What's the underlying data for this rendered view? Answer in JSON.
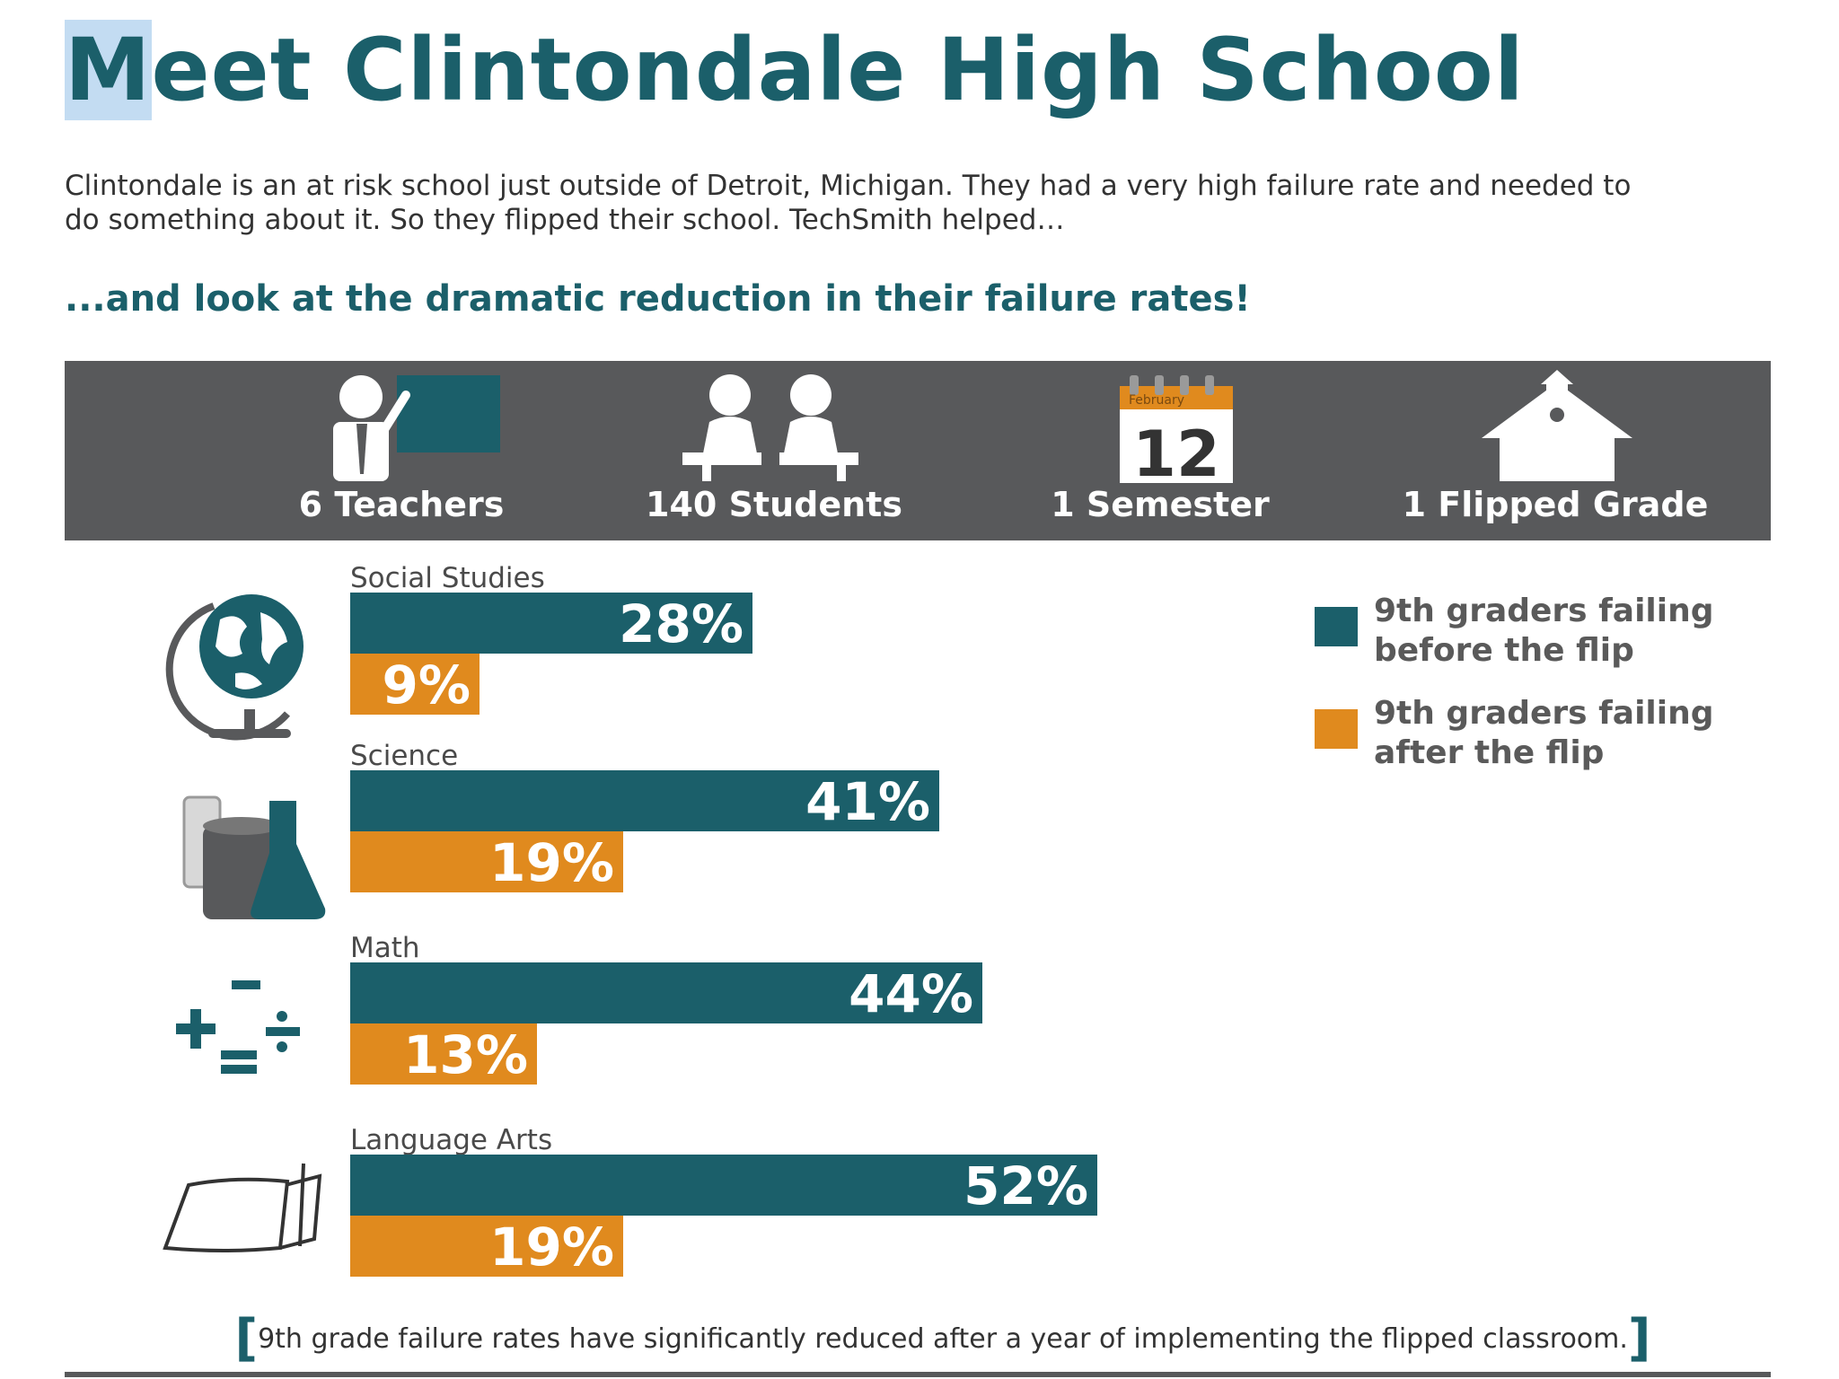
{
  "title_first_letter": "M",
  "title_rest": "eet Clintondale High School",
  "intro": "Clintondale is an at risk school just outside of Detroit, Michigan. They had a very high failure rate and needed to do something about it. So they flipped their school. TechSmith helped…",
  "tagline": "...and look at the dramatic reduction in their failure rates!",
  "stats": [
    {
      "label": "6 Teachers",
      "icon": "teacher-icon"
    },
    {
      "label": "140 Students",
      "icon": "students-icon"
    },
    {
      "label": "1 Semester",
      "icon": "calendar-icon",
      "calendar_month": "February",
      "calendar_day": "12"
    },
    {
      "label": "1 Flipped Grade",
      "icon": "schoolhouse-icon"
    }
  ],
  "colors": {
    "before": "#1b5f6a",
    "after": "#e08a1e",
    "band": "#58595b",
    "title": "#1b5f6a"
  },
  "chart_data": {
    "type": "bar",
    "orientation": "horizontal",
    "categories": [
      "Social Studies",
      "Science",
      "Math",
      "Language Arts"
    ],
    "category_icons": [
      "globe-icon",
      "beakers-icon",
      "math-symbols-icon",
      "book-icon"
    ],
    "series": [
      {
        "name": "9th graders failing before the flip",
        "values": [
          28,
          41,
          44,
          52
        ],
        "value_labels": [
          "28%",
          "41%",
          "44%",
          "52%"
        ]
      },
      {
        "name": "9th graders failing after the flip",
        "values": [
          9,
          19,
          13,
          19
        ],
        "value_labels": [
          "9%",
          "19%",
          "13%",
          "19%"
        ]
      }
    ],
    "unit": "%",
    "xlim": [
      0,
      100
    ],
    "grid": false,
    "legend_position": "top-right",
    "legend": [
      {
        "line1": "9th graders failing",
        "line2": "before the flip"
      },
      {
        "line1": "9th graders failing",
        "line2": "after the flip"
      }
    ]
  },
  "footnote": {
    "open": "[",
    "text": "9th grade failure rates have significantly reduced after a year of implementing the flipped classroom.",
    "close": "]"
  }
}
